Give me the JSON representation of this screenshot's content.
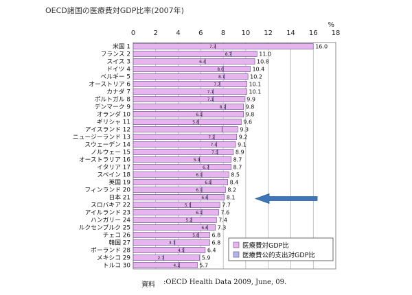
{
  "title": "OECD諸国の医療費対GDP比率(2007年)",
  "source": {
    "label": "資料",
    "text": ":OECD Health Data 2009, June, 09."
  },
  "colors": {
    "total_bar": "#e8b4ee",
    "public_bar": "#b3b3e8",
    "bar_border": "#5a4a8a",
    "arrow": "#3f76b8",
    "grid": "#9a9a9a"
  },
  "arrow": {
    "direction": "left",
    "points_to": "日本 21"
  },
  "chart_data": {
    "type": "bar",
    "orientation": "horizontal",
    "xlim": [
      0,
      18
    ],
    "xticks": [
      0,
      2,
      4,
      6,
      8,
      10,
      12,
      14,
      16,
      18
    ],
    "xlabel": "%",
    "grid": true,
    "legend_position": "bottom-right",
    "categories": [
      "米国 1",
      "フランス 2",
      "スイス 3",
      "ドイツ 4",
      "ベルギー 5",
      "オーストリア 6",
      "カナダ 7",
      "ポルトガル 8",
      "デンマーク 9",
      "オランダ 10",
      "ギリシャ 11",
      "アイスランド 12",
      "ニュージーランド 13",
      "スウェーデン 14",
      "ノルウェー 15",
      "オーストラリア 16",
      "イタリア 17",
      "スペイン 18",
      "英国 19",
      "フィンランド 20",
      "日本 21",
      "スロバキア 22",
      "アイルランド 23",
      "ハンガリー 24",
      "ルクセンブルク 25",
      "チェコ 26",
      "韓国 27",
      "ポーランド 28",
      "メキシコ 29",
      "トルコ 30"
    ],
    "series": [
      {
        "name": "医療費対GDP比",
        "values": [
          16.0,
          11.0,
          10.8,
          10.4,
          10.2,
          10.1,
          10.1,
          9.9,
          9.8,
          9.8,
          9.6,
          9.3,
          9.2,
          9.1,
          8.9,
          8.7,
          8.7,
          8.5,
          8.4,
          8.2,
          8.1,
          7.7,
          7.6,
          7.4,
          7.3,
          6.8,
          6.8,
          6.4,
          5.9,
          5.7
        ]
      },
      {
        "name": "医療費公的支出対GDP比",
        "values": [
          7.3,
          8.7,
          6.4,
          8.0,
          8.1,
          7.7,
          7.1,
          7.1,
          8.2,
          6.1,
          5.8,
          null,
          7.2,
          7.4,
          7.5,
          5.9,
          6.7,
          6.1,
          6.9,
          6.1,
          6.6,
          5.1,
          6.1,
          5.2,
          6.6,
          5.8,
          3.7,
          4.5,
          2.7,
          4.1
        ]
      }
    ]
  }
}
